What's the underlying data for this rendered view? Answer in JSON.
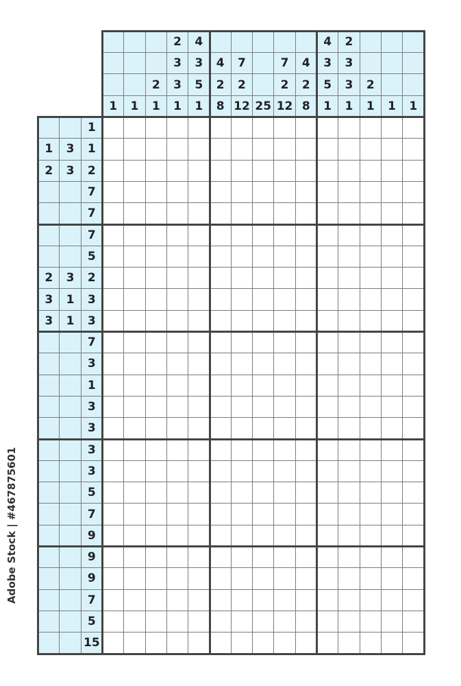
{
  "puzzle": {
    "columns": 15,
    "rows": 25,
    "block_size": 5,
    "colors": {
      "clue_background": "#daf3fb",
      "grid_line": "#7a7a7a",
      "block_line": "#444444",
      "cell_background": "#ffffff"
    },
    "column_clues": [
      [
        "1"
      ],
      [
        "1"
      ],
      [
        "2",
        "1"
      ],
      [
        "2",
        "3",
        "3",
        "1"
      ],
      [
        "4",
        "3",
        "5",
        "1"
      ],
      [
        "4",
        "2",
        "8"
      ],
      [
        "7",
        "2",
        "12"
      ],
      [
        "25"
      ],
      [
        "7",
        "2",
        "12"
      ],
      [
        "4",
        "2",
        "8"
      ],
      [
        "4",
        "3",
        "5",
        "1"
      ],
      [
        "2",
        "3",
        "3",
        "1"
      ],
      [
        "2",
        "1"
      ],
      [
        "1"
      ],
      [
        "1"
      ]
    ],
    "row_clues": [
      [
        "1"
      ],
      [
        "1",
        "3",
        "1"
      ],
      [
        "2",
        "3",
        "2"
      ],
      [
        "7"
      ],
      [
        "7"
      ],
      [
        "7"
      ],
      [
        "5"
      ],
      [
        "2",
        "3",
        "2"
      ],
      [
        "3",
        "1",
        "3"
      ],
      [
        "3",
        "1",
        "3"
      ],
      [
        "7"
      ],
      [
        "3"
      ],
      [
        "1"
      ],
      [
        "3"
      ],
      [
        "3"
      ],
      [
        "3"
      ],
      [
        "3"
      ],
      [
        "5"
      ],
      [
        "7"
      ],
      [
        "9"
      ],
      [
        "9"
      ],
      [
        "9"
      ],
      [
        "7"
      ],
      [
        "5"
      ],
      [
        "15"
      ]
    ]
  },
  "watermark": "Adobe Stock | #467875601"
}
